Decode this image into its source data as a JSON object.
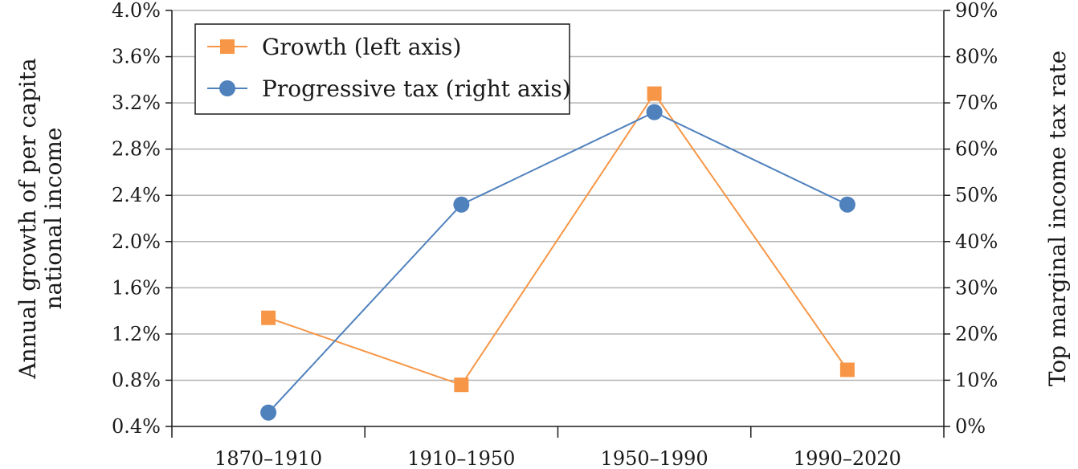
{
  "chart_data": {
    "type": "line",
    "categories": [
      "1870–1910",
      "1910–1950",
      "1950–1990",
      "1990–2020"
    ],
    "series": [
      {
        "name": "Growth (left axis)",
        "axis": "left",
        "color": "#F79646",
        "marker": "square",
        "values": [
          1.34,
          0.76,
          3.28,
          0.89
        ]
      },
      {
        "name": "Progressive tax (right axis)",
        "axis": "right",
        "color": "#4F81BD",
        "marker": "circle",
        "values": [
          3,
          48,
          68,
          48
        ]
      }
    ],
    "y_left": {
      "label_lines": [
        "Annual growth of per capita",
        "national income"
      ],
      "range": [
        0.4,
        4.0
      ],
      "ticks": [
        "0.4%",
        "0.8%",
        "1.2%",
        "1.6%",
        "2.0%",
        "2.4%",
        "2.8%",
        "3.2%",
        "3.6%",
        "4.0%"
      ]
    },
    "y_right": {
      "label": "Top marginal income tax rate",
      "range": [
        0,
        90
      ],
      "ticks": [
        "0%",
        "10%",
        "20%",
        "30%",
        "40%",
        "50%",
        "60%",
        "70%",
        "80%",
        "90%"
      ]
    },
    "grid": "horizontal",
    "legend_position": "top-left"
  }
}
